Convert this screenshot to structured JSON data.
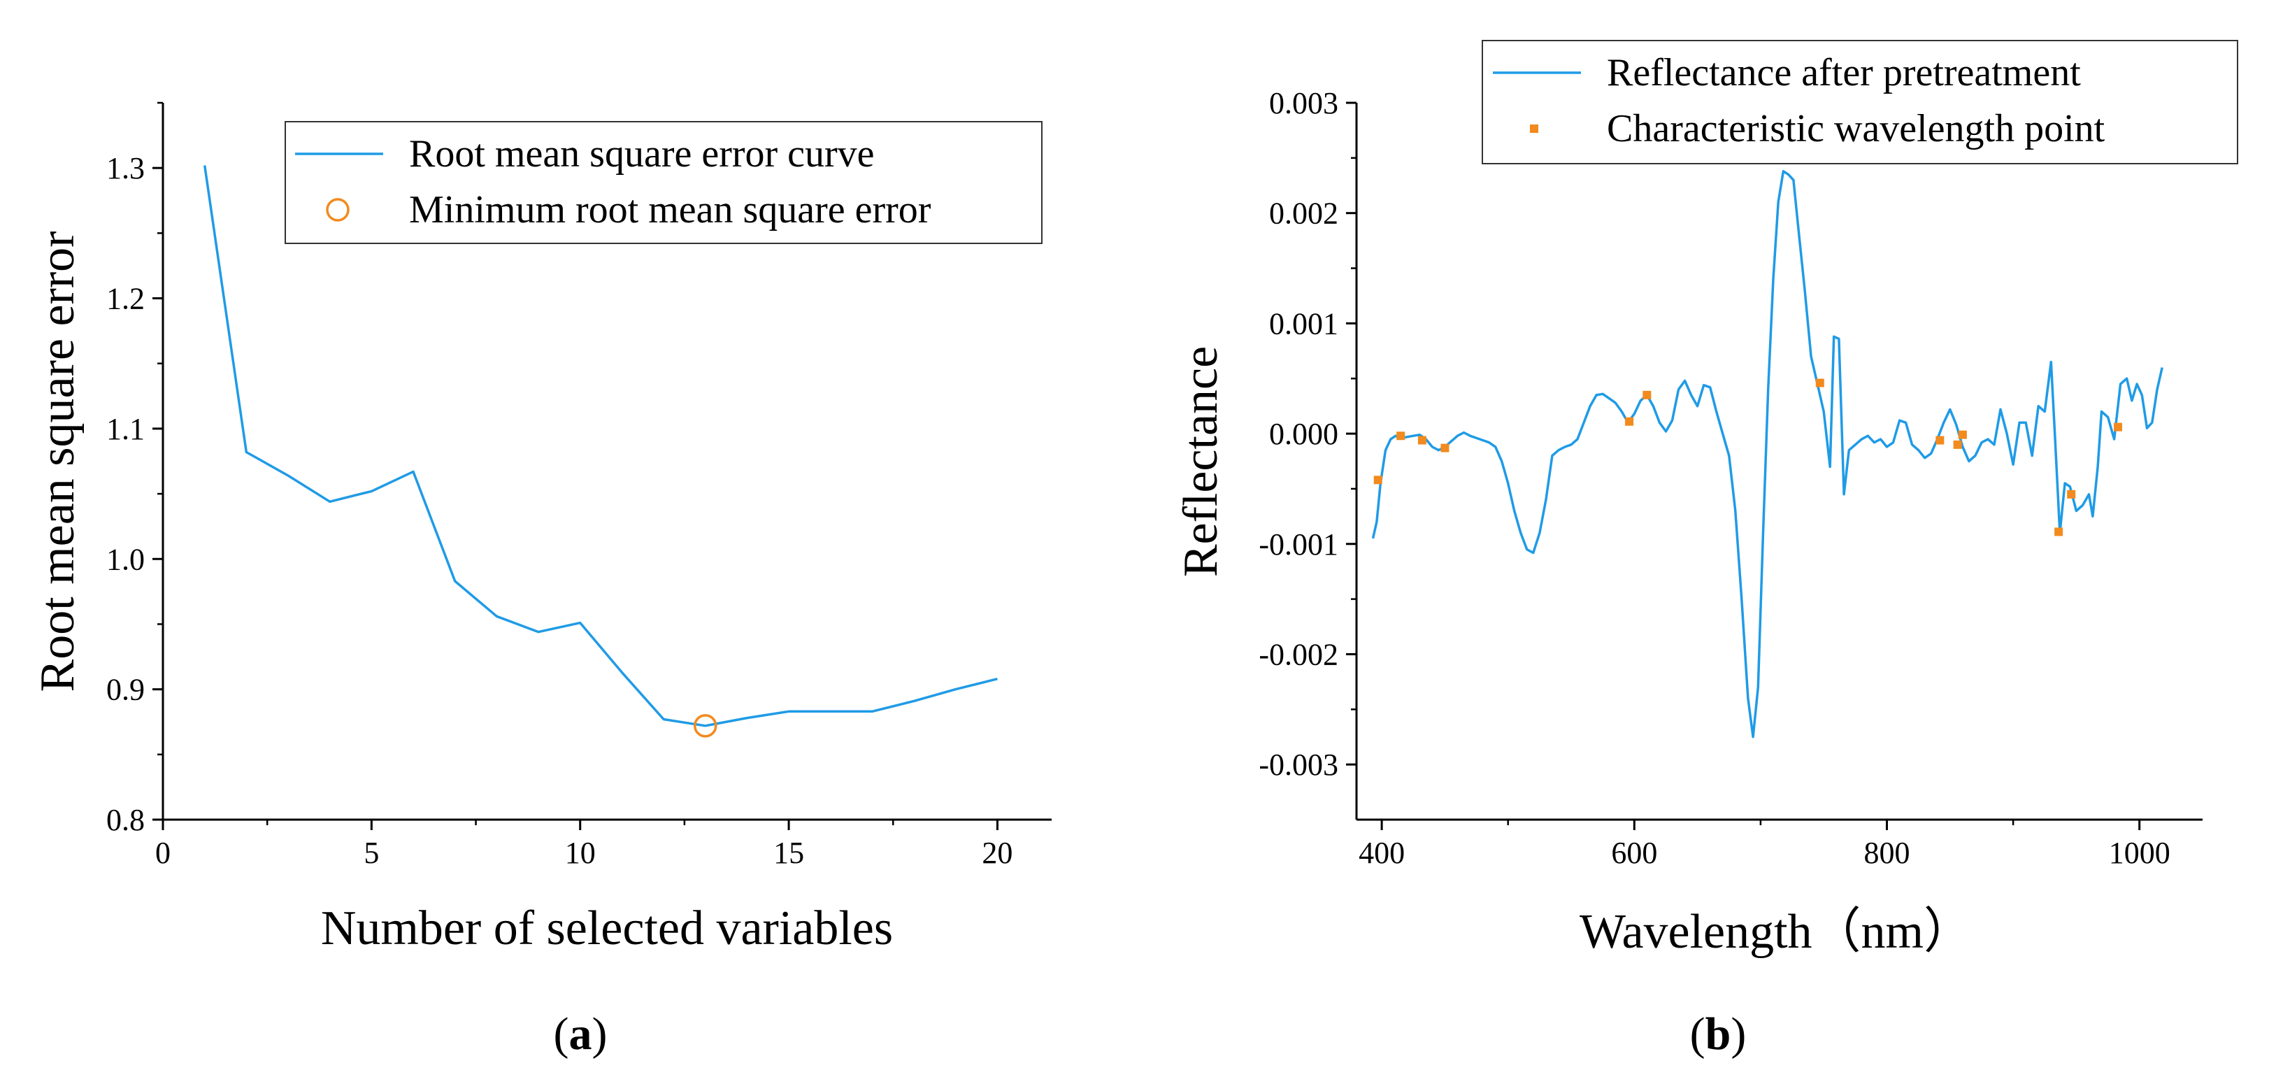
{
  "chart_data": [
    {
      "type": "line",
      "panel_label": "a",
      "xlabel": "Number of selected variables",
      "ylabel": "Root mean square error",
      "xlim": [
        0,
        21.3
      ],
      "ylim": [
        0.8,
        1.35
      ],
      "xticks": [
        0,
        5,
        10,
        15,
        20
      ],
      "xtick_labels": [
        "0",
        "5",
        "10",
        "15",
        "20"
      ],
      "yticks": [
        0.8,
        0.9,
        1.0,
        1.1,
        1.2,
        1.3
      ],
      "ytick_labels": [
        "0.8",
        "0.9",
        "1.0",
        "1.1",
        "1.2",
        "1.3"
      ],
      "series": [
        {
          "name": "Root mean square error curve",
          "color": "#1f9be6",
          "x": [
            1,
            2,
            3,
            4,
            5,
            6,
            7,
            8,
            9,
            10,
            11,
            12,
            13,
            14,
            15,
            16,
            17,
            18,
            19,
            20
          ],
          "values": [
            1.302,
            1.082,
            1.064,
            1.044,
            1.052,
            1.067,
            0.983,
            0.956,
            0.944,
            0.951,
            0.913,
            0.877,
            0.872,
            0.878,
            0.883,
            0.883,
            0.883,
            0.891,
            0.9,
            0.908
          ]
        }
      ],
      "markers": [
        {
          "name": "Minimum root mean square error",
          "color": "#f28a1e",
          "x": [
            13
          ],
          "values": [
            0.872
          ]
        }
      ],
      "legend": [
        {
          "label": "Root mean square error curve",
          "style": "line"
        },
        {
          "label": "Minimum root mean square error",
          "style": "circle"
        }
      ],
      "legend_position": "top-right"
    },
    {
      "type": "line",
      "panel_label": "b",
      "xlabel": "Wavelength（nm）",
      "ylabel": "Reflectance",
      "xlim": [
        380,
        1050
      ],
      "ylim": [
        -0.0035,
        0.003
      ],
      "xticks": [
        400,
        600,
        800,
        1000
      ],
      "xtick_labels": [
        "400",
        "600",
        "800",
        "1000"
      ],
      "yticks": [
        -0.003,
        -0.002,
        -0.001,
        0,
        0.001,
        0.002,
        0.003
      ],
      "ytick_labels": [
        "-0.003",
        "-0.002",
        "-0.001",
        "0.000",
        "0.001",
        "0.002",
        "0.003"
      ],
      "series": [
        {
          "name": "Reflectance after pretreatment",
          "color": "#1f9be6",
          "x": [
            393,
            396,
            399,
            403,
            407,
            411,
            415,
            420,
            425,
            430,
            435,
            440,
            445,
            450,
            455,
            460,
            465,
            470,
            475,
            480,
            485,
            490,
            495,
            500,
            505,
            510,
            515,
            520,
            525,
            530,
            535,
            540,
            545,
            550,
            555,
            560,
            565,
            570,
            575,
            580,
            585,
            590,
            595,
            600,
            605,
            610,
            615,
            620,
            625,
            630,
            635,
            640,
            645,
            650,
            655,
            660,
            665,
            670,
            675,
            680,
            685,
            690,
            694,
            698,
            702,
            706,
            710,
            714,
            718,
            722,
            726,
            730,
            735,
            740,
            745,
            750,
            755,
            758,
            762,
            766,
            770,
            775,
            780,
            785,
            790,
            795,
            800,
            805,
            810,
            815,
            820,
            825,
            830,
            835,
            840,
            845,
            850,
            855,
            860,
            865,
            870,
            875,
            880,
            885,
            890,
            895,
            900,
            905,
            910,
            915,
            920,
            925,
            930,
            933,
            937,
            941,
            945,
            950,
            955,
            960,
            963,
            967,
            970,
            975,
            980,
            985,
            990,
            994,
            998,
            1002,
            1006,
            1010,
            1014,
            1018
          ],
          "values": [
            -0.00095,
            -0.0008,
            -0.00045,
            -0.00015,
            -5e-05,
            -2e-05,
            -4e-05,
            -3e-05,
            -2e-05,
            -1e-05,
            -5e-05,
            -0.00012,
            -0.00015,
            -0.00012,
            -7e-05,
            -2e-05,
            1e-05,
            -2e-05,
            -4e-05,
            -6e-05,
            -8e-05,
            -0.00012,
            -0.00025,
            -0.00045,
            -0.0007,
            -0.0009,
            -0.00105,
            -0.00108,
            -0.0009,
            -0.0006,
            -0.0002,
            -0.00015,
            -0.00012,
            -0.0001,
            -5e-05,
            0.0001,
            0.00025,
            0.00035,
            0.00036,
            0.00032,
            0.00028,
            0.0002,
            0.0001,
            0.00018,
            0.0003,
            0.00035,
            0.00025,
            0.0001,
            2e-05,
            0.00012,
            0.0004,
            0.00048,
            0.00035,
            0.00025,
            0.00044,
            0.00042,
            0.0002,
            0.0,
            -0.0002,
            -0.0007,
            -0.0015,
            -0.0024,
            -0.00275,
            -0.0023,
            -0.0009,
            0.0004,
            0.0014,
            0.0021,
            0.00238,
            0.00235,
            0.0023,
            0.00185,
            0.0013,
            0.0007,
            0.00045,
            0.0002,
            -0.0003,
            0.00088,
            0.00086,
            -0.00055,
            -0.00015,
            -0.0001,
            -5e-05,
            -2e-05,
            -8e-05,
            -5e-05,
            -0.00012,
            -8e-05,
            0.00012,
            0.0001,
            -0.0001,
            -0.00015,
            -0.00022,
            -0.00018,
            -5e-05,
            0.0001,
            0.00022,
            8e-05,
            -0.00012,
            -0.00025,
            -0.0002,
            -8e-05,
            -5e-05,
            -0.0001,
            0.00022,
            0.0,
            -0.00028,
            0.0001,
            0.0001,
            -0.0002,
            0.00025,
            0.0002,
            0.00065,
            0.0,
            -0.0009,
            -0.00045,
            -0.00048,
            -0.0007,
            -0.00065,
            -0.00055,
            -0.00075,
            -0.0003,
            0.0002,
            0.00015,
            -5e-05,
            0.00045,
            0.0005,
            0.0003,
            0.00045,
            0.00035,
            5e-05,
            0.0001,
            0.0004,
            0.0006
          ]
        }
      ],
      "markers": [
        {
          "name": "Characteristic wavelength point",
          "color": "#f28a1e",
          "x": [
            397,
            415,
            432,
            450,
            596,
            610,
            747,
            842,
            856,
            860,
            936,
            946,
            983
          ],
          "values": [
            -0.00042,
            -2e-05,
            -6e-05,
            -0.00013,
            0.00011,
            0.00035,
            0.00046,
            -6e-05,
            -0.0001,
            -1e-05,
            -0.00089,
            -0.00055,
            6e-05
          ]
        }
      ],
      "legend": [
        {
          "label": "Reflectance after pretreatment",
          "style": "line"
        },
        {
          "label": "Characteristic wavelength point",
          "style": "square"
        }
      ],
      "legend_position": "top"
    }
  ]
}
